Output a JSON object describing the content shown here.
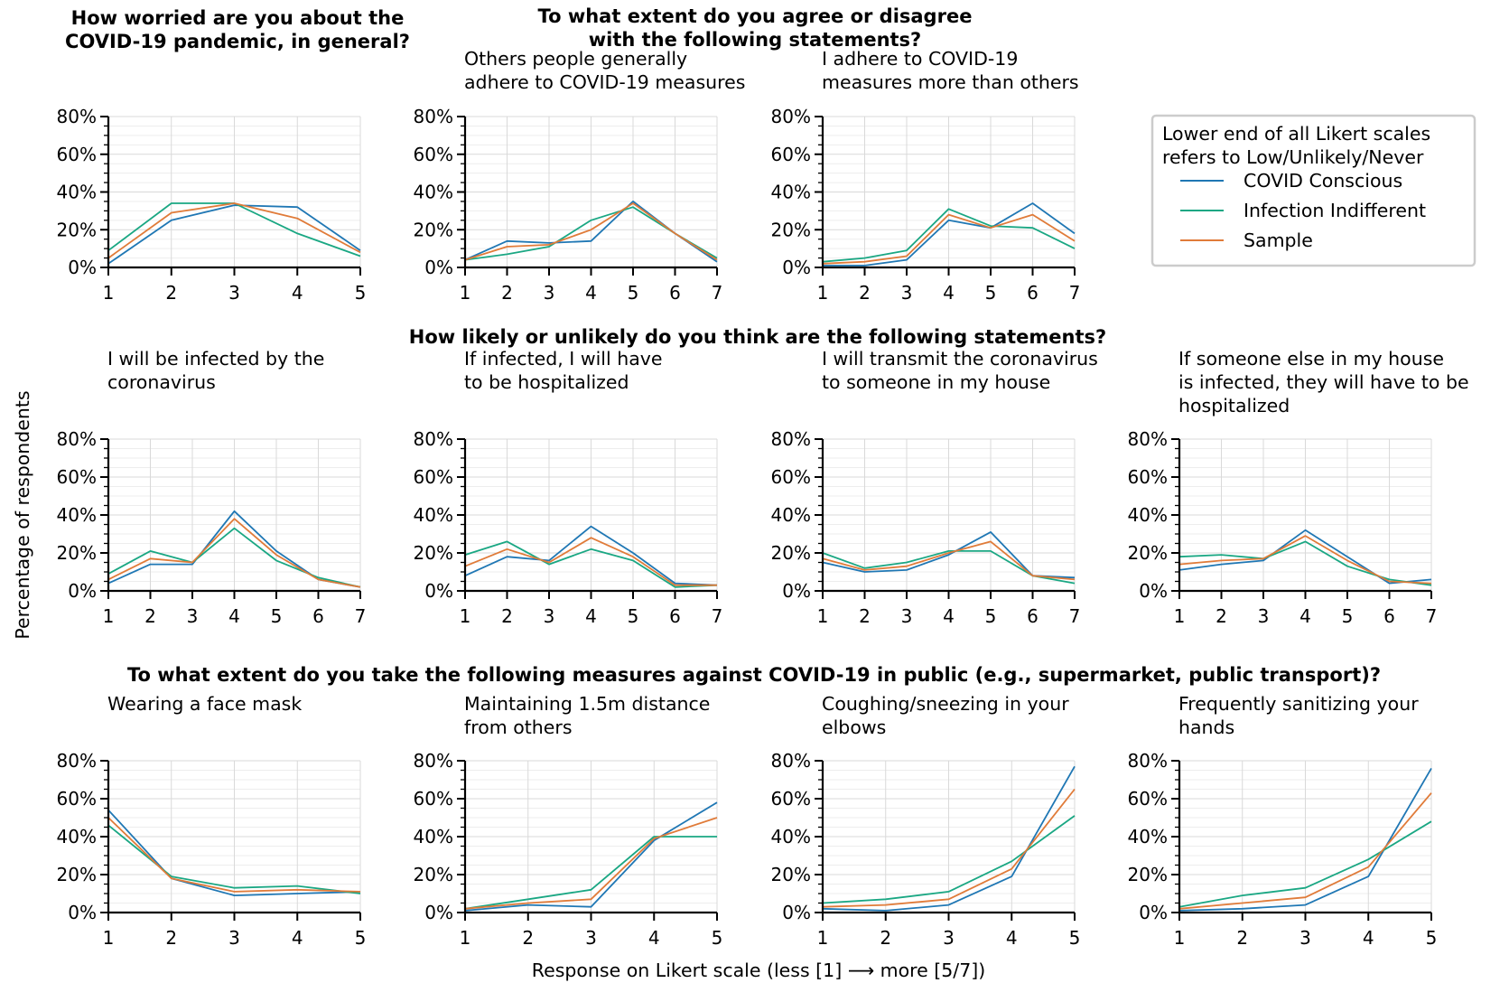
{
  "headings": [
    {
      "lines": [
        "How worried are you about the",
        "COVID-19 pandemic, in general?"
      ]
    },
    {
      "lines": [
        "To what extent do you agree or disagree",
        "with the following statements?"
      ]
    },
    {
      "lines": [
        "How likely or unlikely do you think are the following statements?"
      ]
    },
    {
      "lines": [
        "To what extent do you take the following measures against COVID-19 in public (e.g., supermarket, public transport)?"
      ]
    }
  ],
  "ylabel": "Percentage of respondents",
  "xlabel": "Response on Likert scale (less [1] ⟶ more [5/7])",
  "legend": {
    "title_lines": [
      "Lower end of all Likert scales",
      "refers to Low/Unlikely/Never"
    ],
    "entries": [
      "COVID Conscious",
      "Infection Indifferent",
      "Sample"
    ]
  },
  "colors": {
    "COVID Conscious": "#1f77b4",
    "Infection Indifferent": "#1aa783",
    "Sample": "#e07b39"
  },
  "y_ticks": [
    "0%",
    "20%",
    "40%",
    "60%",
    "80%"
  ],
  "chart_data": [
    {
      "type": "line",
      "title_lines": [],
      "x": [
        1,
        2,
        3,
        4,
        5
      ],
      "ylim": [
        0,
        80
      ],
      "grid": true,
      "series": [
        {
          "name": "COVID Conscious",
          "values": [
            2,
            25,
            33,
            32,
            9
          ]
        },
        {
          "name": "Infection Indifferent",
          "values": [
            9,
            34,
            34,
            18,
            6
          ]
        },
        {
          "name": "Sample",
          "values": [
            5,
            29,
            34,
            26,
            8
          ]
        }
      ]
    },
    {
      "type": "line",
      "title_lines": [
        "Others people generally",
        "adhere to COVID-19 measures"
      ],
      "x": [
        1,
        2,
        3,
        4,
        5,
        6,
        7
      ],
      "ylim": [
        0,
        80
      ],
      "grid": true,
      "series": [
        {
          "name": "COVID Conscious",
          "values": [
            4,
            14,
            13,
            14,
            35,
            18,
            3
          ]
        },
        {
          "name": "Infection Indifferent",
          "values": [
            4,
            7,
            11,
            25,
            32,
            18,
            5
          ]
        },
        {
          "name": "Sample",
          "values": [
            4,
            11,
            12,
            20,
            34,
            18,
            4
          ]
        }
      ]
    },
    {
      "type": "line",
      "title_lines": [
        "I adhere to COVID-19",
        "measures more than others"
      ],
      "x": [
        1,
        2,
        3,
        4,
        5,
        6,
        7
      ],
      "ylim": [
        0,
        80
      ],
      "grid": true,
      "series": [
        {
          "name": "COVID Conscious",
          "values": [
            1,
            1,
            4,
            25,
            21,
            34,
            18
          ]
        },
        {
          "name": "Infection Indifferent",
          "values": [
            3,
            5,
            9,
            31,
            22,
            21,
            10
          ]
        },
        {
          "name": "Sample",
          "values": [
            2,
            3,
            6,
            28,
            21,
            28,
            14
          ]
        }
      ]
    },
    {
      "type": "line",
      "title_lines": [
        "I will be infected by the",
        "coronavirus"
      ],
      "x": [
        1,
        2,
        3,
        4,
        5,
        6,
        7
      ],
      "ylim": [
        0,
        80
      ],
      "grid": true,
      "series": [
        {
          "name": "COVID Conscious",
          "values": [
            4,
            14,
            14,
            42,
            21,
            6,
            2
          ]
        },
        {
          "name": "Infection Indifferent",
          "values": [
            9,
            21,
            15,
            33,
            16,
            7,
            2
          ]
        },
        {
          "name": "Sample",
          "values": [
            6,
            17,
            15,
            38,
            19,
            6,
            2
          ]
        }
      ]
    },
    {
      "type": "line",
      "title_lines": [
        "If infected, I will have",
        "to be hospitalized"
      ],
      "x": [
        1,
        2,
        3,
        4,
        5,
        6,
        7
      ],
      "ylim": [
        0,
        80
      ],
      "grid": true,
      "series": [
        {
          "name": "COVID Conscious",
          "values": [
            8,
            18,
            16,
            34,
            20,
            4,
            3
          ]
        },
        {
          "name": "Infection Indifferent",
          "values": [
            19,
            26,
            14,
            22,
            16,
            2,
            3
          ]
        },
        {
          "name": "Sample",
          "values": [
            13,
            22,
            15,
            28,
            18,
            3,
            3
          ]
        }
      ]
    },
    {
      "type": "line",
      "title_lines": [
        "I will transmit the coronavirus",
        "to someone in my house"
      ],
      "x": [
        1,
        2,
        3,
        4,
        5,
        6,
        7
      ],
      "ylim": [
        0,
        80
      ],
      "grid": true,
      "series": [
        {
          "name": "COVID Conscious",
          "values": [
            15,
            10,
            11,
            19,
            31,
            8,
            7
          ]
        },
        {
          "name": "Infection Indifferent",
          "values": [
            20,
            12,
            15,
            21,
            21,
            8,
            4
          ]
        },
        {
          "name": "Sample",
          "values": [
            17,
            11,
            13,
            20,
            26,
            8,
            6
          ]
        }
      ]
    },
    {
      "type": "line",
      "title_lines": [
        "If someone else in my house",
        "is infected, they will have to be",
        "hospitalized"
      ],
      "x": [
        1,
        2,
        3,
        4,
        5,
        6,
        7
      ],
      "ylim": [
        0,
        80
      ],
      "grid": true,
      "series": [
        {
          "name": "COVID Conscious",
          "values": [
            11,
            14,
            16,
            32,
            18,
            4,
            6
          ]
        },
        {
          "name": "Infection Indifferent",
          "values": [
            18,
            19,
            17,
            26,
            13,
            6,
            3
          ]
        },
        {
          "name": "Sample",
          "values": [
            14,
            16,
            17,
            29,
            16,
            5,
            4
          ]
        }
      ]
    },
    {
      "type": "line",
      "title_lines": [
        "Wearing a face mask"
      ],
      "x": [
        1,
        2,
        3,
        4,
        5
      ],
      "ylim": [
        0,
        80
      ],
      "grid": true,
      "series": [
        {
          "name": "COVID Conscious",
          "values": [
            54,
            18,
            9,
            10,
            11
          ]
        },
        {
          "name": "Infection Indifferent",
          "values": [
            46,
            19,
            13,
            14,
            10
          ]
        },
        {
          "name": "Sample",
          "values": [
            50,
            18,
            11,
            12,
            11
          ]
        }
      ]
    },
    {
      "type": "line",
      "title_lines": [
        "Maintaining 1.5m distance",
        "from others"
      ],
      "x": [
        1,
        2,
        3,
        4,
        5
      ],
      "ylim": [
        0,
        80
      ],
      "grid": true,
      "series": [
        {
          "name": "COVID Conscious",
          "values": [
            1,
            4,
            3,
            38,
            58
          ]
        },
        {
          "name": "Infection Indifferent",
          "values": [
            2,
            7,
            12,
            40,
            40
          ]
        },
        {
          "name": "Sample",
          "values": [
            2,
            5,
            7,
            39,
            50
          ]
        }
      ]
    },
    {
      "type": "line",
      "title_lines": [
        "Coughing/sneezing in your",
        "elbows"
      ],
      "x": [
        1,
        2,
        3,
        4,
        5
      ],
      "ylim": [
        0,
        80
      ],
      "grid": true,
      "series": [
        {
          "name": "COVID Conscious",
          "values": [
            2,
            1,
            4,
            19,
            77
          ]
        },
        {
          "name": "Infection Indifferent",
          "values": [
            5,
            7,
            11,
            27,
            51
          ]
        },
        {
          "name": "Sample",
          "values": [
            3,
            4,
            7,
            23,
            65
          ]
        }
      ]
    },
    {
      "type": "line",
      "title_lines": [
        "Frequently sanitizing your",
        "hands"
      ],
      "x": [
        1,
        2,
        3,
        4,
        5
      ],
      "ylim": [
        0,
        80
      ],
      "grid": true,
      "series": [
        {
          "name": "COVID Conscious",
          "values": [
            1,
            2,
            4,
            19,
            76
          ]
        },
        {
          "name": "Infection Indifferent",
          "values": [
            3,
            9,
            13,
            28,
            48
          ]
        },
        {
          "name": "Sample",
          "values": [
            2,
            5,
            8,
            24,
            63
          ]
        }
      ]
    }
  ]
}
